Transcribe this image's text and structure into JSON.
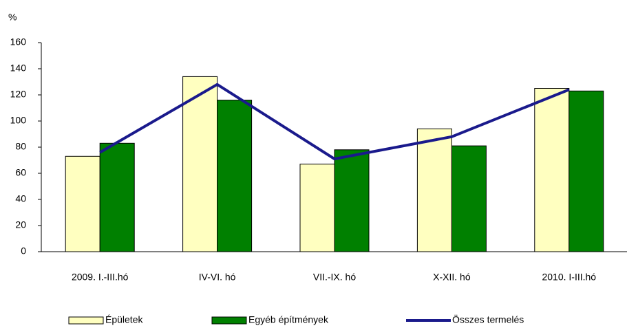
{
  "chart_data": {
    "type": "bar_line",
    "y_label": "%",
    "categories": [
      "2009. I.-III.hó",
      "IV-VI. hó",
      "VII.-IX. hó",
      "X-XII. hó",
      "2010. I-III.hó"
    ],
    "series": [
      {
        "name": "Épületek",
        "type": "bar",
        "color": "#ffffc0",
        "values": [
          73,
          134,
          67,
          94,
          125
        ]
      },
      {
        "name": "Egyéb építmények",
        "type": "bar",
        "color": "#008000",
        "values": [
          83,
          116,
          78,
          81,
          123
        ]
      },
      {
        "name": "Összes termelés",
        "type": "line",
        "color": "#1a1a8c",
        "values": [
          76,
          128,
          71,
          88,
          124
        ]
      }
    ],
    "ylim": [
      0,
      160
    ],
    "yticks": [
      0,
      20,
      40,
      60,
      80,
      100,
      120,
      140,
      160
    ],
    "grid": false
  }
}
